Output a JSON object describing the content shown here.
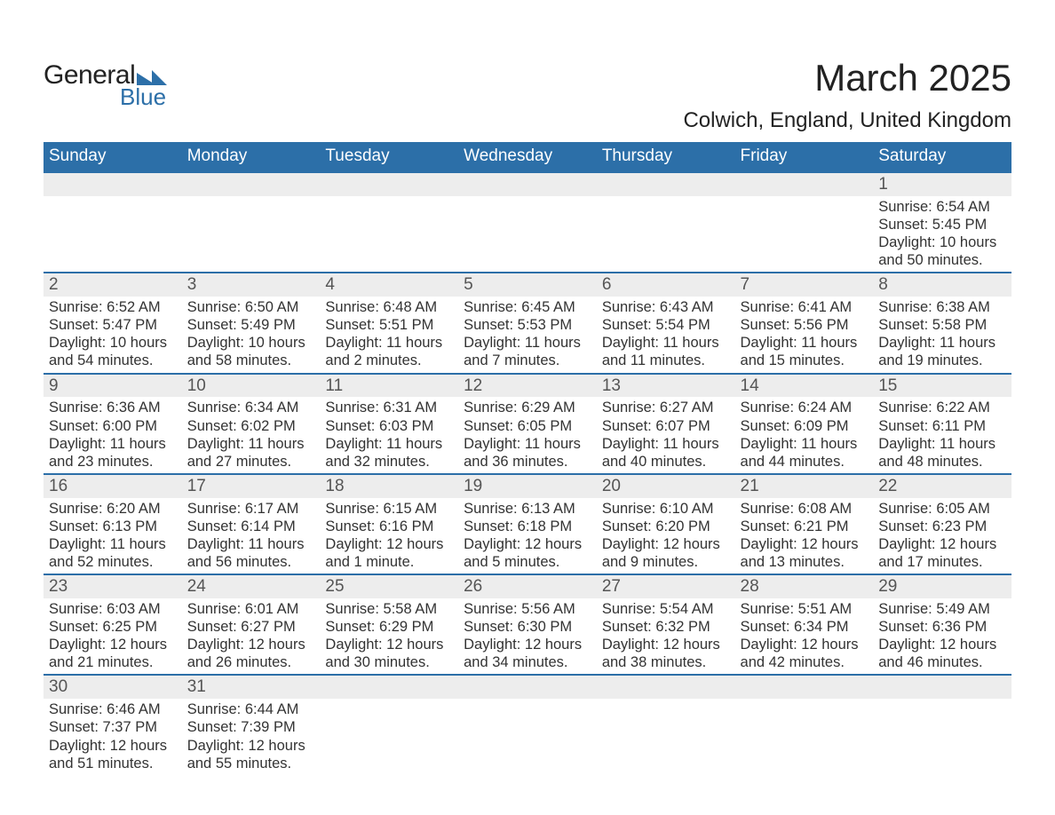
{
  "logo": {
    "text1": "General",
    "text2": "Blue",
    "tri_color": "#2c6fa8"
  },
  "header": {
    "title": "March 2025",
    "subtitle": "Colwich, England, United Kingdom",
    "title_fontsize": 42,
    "subtitle_fontsize": 24
  },
  "calendar": {
    "type": "table",
    "columns": [
      "Sunday",
      "Monday",
      "Tuesday",
      "Wednesday",
      "Thursday",
      "Friday",
      "Saturday"
    ],
    "header_bg": "#2c6fa8",
    "header_text_color": "#ffffff",
    "header_fontsize": 19,
    "row_separator_color": "#2c6fa8",
    "row_separator_width": 2,
    "daynum_bg": "#ededed",
    "daynum_color": "#555555",
    "daynum_fontsize": 19,
    "body_text_color": "#333333",
    "body_fontsize": 16.5,
    "weeks": [
      [
        null,
        null,
        null,
        null,
        null,
        null,
        {
          "n": "1",
          "sunrise": "6:54 AM",
          "sunset": "5:45 PM",
          "daylight": "10 hours and 50 minutes."
        }
      ],
      [
        {
          "n": "2",
          "sunrise": "6:52 AM",
          "sunset": "5:47 PM",
          "daylight": "10 hours and 54 minutes."
        },
        {
          "n": "3",
          "sunrise": "6:50 AM",
          "sunset": "5:49 PM",
          "daylight": "10 hours and 58 minutes."
        },
        {
          "n": "4",
          "sunrise": "6:48 AM",
          "sunset": "5:51 PM",
          "daylight": "11 hours and 2 minutes."
        },
        {
          "n": "5",
          "sunrise": "6:45 AM",
          "sunset": "5:53 PM",
          "daylight": "11 hours and 7 minutes."
        },
        {
          "n": "6",
          "sunrise": "6:43 AM",
          "sunset": "5:54 PM",
          "daylight": "11 hours and 11 minutes."
        },
        {
          "n": "7",
          "sunrise": "6:41 AM",
          "sunset": "5:56 PM",
          "daylight": "11 hours and 15 minutes."
        },
        {
          "n": "8",
          "sunrise": "6:38 AM",
          "sunset": "5:58 PM",
          "daylight": "11 hours and 19 minutes."
        }
      ],
      [
        {
          "n": "9",
          "sunrise": "6:36 AM",
          "sunset": "6:00 PM",
          "daylight": "11 hours and 23 minutes."
        },
        {
          "n": "10",
          "sunrise": "6:34 AM",
          "sunset": "6:02 PM",
          "daylight": "11 hours and 27 minutes."
        },
        {
          "n": "11",
          "sunrise": "6:31 AM",
          "sunset": "6:03 PM",
          "daylight": "11 hours and 32 minutes."
        },
        {
          "n": "12",
          "sunrise": "6:29 AM",
          "sunset": "6:05 PM",
          "daylight": "11 hours and 36 minutes."
        },
        {
          "n": "13",
          "sunrise": "6:27 AM",
          "sunset": "6:07 PM",
          "daylight": "11 hours and 40 minutes."
        },
        {
          "n": "14",
          "sunrise": "6:24 AM",
          "sunset": "6:09 PM",
          "daylight": "11 hours and 44 minutes."
        },
        {
          "n": "15",
          "sunrise": "6:22 AM",
          "sunset": "6:11 PM",
          "daylight": "11 hours and 48 minutes."
        }
      ],
      [
        {
          "n": "16",
          "sunrise": "6:20 AM",
          "sunset": "6:13 PM",
          "daylight": "11 hours and 52 minutes."
        },
        {
          "n": "17",
          "sunrise": "6:17 AM",
          "sunset": "6:14 PM",
          "daylight": "11 hours and 56 minutes."
        },
        {
          "n": "18",
          "sunrise": "6:15 AM",
          "sunset": "6:16 PM",
          "daylight": "12 hours and 1 minute."
        },
        {
          "n": "19",
          "sunrise": "6:13 AM",
          "sunset": "6:18 PM",
          "daylight": "12 hours and 5 minutes."
        },
        {
          "n": "20",
          "sunrise": "6:10 AM",
          "sunset": "6:20 PM",
          "daylight": "12 hours and 9 minutes."
        },
        {
          "n": "21",
          "sunrise": "6:08 AM",
          "sunset": "6:21 PM",
          "daylight": "12 hours and 13 minutes."
        },
        {
          "n": "22",
          "sunrise": "6:05 AM",
          "sunset": "6:23 PM",
          "daylight": "12 hours and 17 minutes."
        }
      ],
      [
        {
          "n": "23",
          "sunrise": "6:03 AM",
          "sunset": "6:25 PM",
          "daylight": "12 hours and 21 minutes."
        },
        {
          "n": "24",
          "sunrise": "6:01 AM",
          "sunset": "6:27 PM",
          "daylight": "12 hours and 26 minutes."
        },
        {
          "n": "25",
          "sunrise": "5:58 AM",
          "sunset": "6:29 PM",
          "daylight": "12 hours and 30 minutes."
        },
        {
          "n": "26",
          "sunrise": "5:56 AM",
          "sunset": "6:30 PM",
          "daylight": "12 hours and 34 minutes."
        },
        {
          "n": "27",
          "sunrise": "5:54 AM",
          "sunset": "6:32 PM",
          "daylight": "12 hours and 38 minutes."
        },
        {
          "n": "28",
          "sunrise": "5:51 AM",
          "sunset": "6:34 PM",
          "daylight": "12 hours and 42 minutes."
        },
        {
          "n": "29",
          "sunrise": "5:49 AM",
          "sunset": "6:36 PM",
          "daylight": "12 hours and 46 minutes."
        }
      ],
      [
        {
          "n": "30",
          "sunrise": "6:46 AM",
          "sunset": "7:37 PM",
          "daylight": "12 hours and 51 minutes."
        },
        {
          "n": "31",
          "sunrise": "6:44 AM",
          "sunset": "7:39 PM",
          "daylight": "12 hours and 55 minutes."
        },
        null,
        null,
        null,
        null,
        null
      ]
    ],
    "labels": {
      "sunrise": "Sunrise: ",
      "sunset": "Sunset: ",
      "daylight": "Daylight: "
    }
  }
}
